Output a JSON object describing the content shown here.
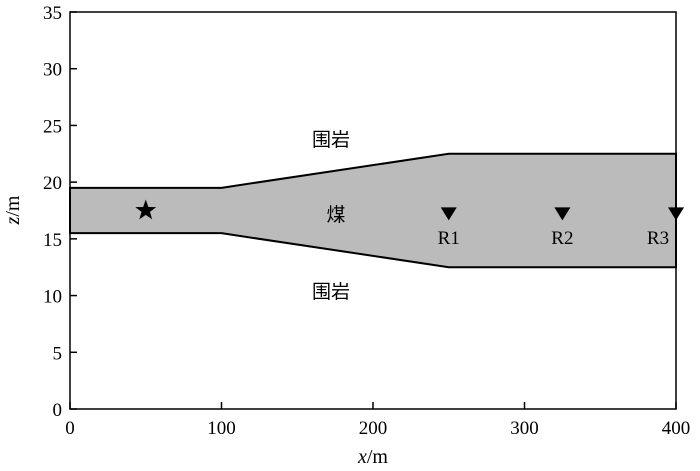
{
  "axes": {
    "xlabel_var": "x",
    "xlabel_unit": "/m",
    "ylabel_var": "z",
    "ylabel_unit": "/m",
    "xlim": [
      0,
      400
    ],
    "ylim": [
      0,
      35
    ],
    "xticks": [
      "0",
      "100",
      "200",
      "300",
      "400"
    ],
    "yticks": [
      "0",
      "5",
      "10",
      "15",
      "20",
      "25",
      "30",
      "35"
    ]
  },
  "model": {
    "coal_fill": "#bbbbbb",
    "outline": "#000000",
    "coal_outline": [
      [
        0,
        19.5
      ],
      [
        100,
        19.5
      ],
      [
        250,
        22.5
      ],
      [
        400,
        22.5
      ],
      [
        400,
        12.5
      ],
      [
        250,
        12.5
      ],
      [
        100,
        15.5
      ],
      [
        0,
        15.5
      ]
    ]
  },
  "labels": {
    "coal": "煤",
    "rock_top": "围岩",
    "rock_bottom": "围岩"
  },
  "source": {
    "icon": "star-icon",
    "x": 50,
    "z": 17.5
  },
  "receivers": [
    {
      "label": "R1",
      "x": 250,
      "z": 17.2
    },
    {
      "label": "R2",
      "x": 325,
      "z": 17.2
    },
    {
      "label": "R3",
      "x": 400,
      "z": 17.2
    }
  ]
}
